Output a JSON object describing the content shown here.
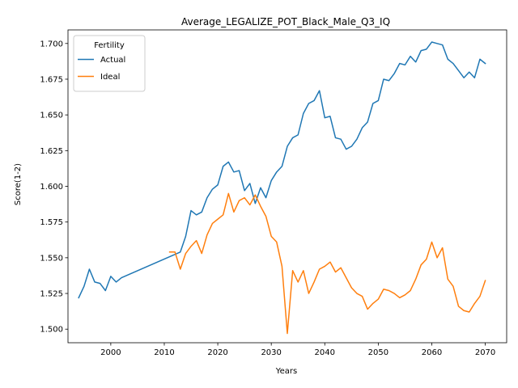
{
  "chart_data": {
    "type": "line",
    "title": "Average_LEGALIZE_POT_Black_Male_Q3_IQ",
    "xlabel": "Years",
    "ylabel": "Score(1-2)",
    "xlim": [
      1992,
      2074
    ],
    "ylim": [
      1.4905,
      1.7095
    ],
    "x_ticks": [
      2000,
      2010,
      2020,
      2030,
      2040,
      2050,
      2060,
      2070
    ],
    "y_ticks": [
      1.5,
      1.525,
      1.55,
      1.575,
      1.6,
      1.625,
      1.65,
      1.675,
      1.7
    ],
    "y_tick_labels": [
      "1.500",
      "1.525",
      "1.550",
      "1.575",
      "1.600",
      "1.625",
      "1.650",
      "1.675",
      "1.700"
    ],
    "legend": {
      "title": "Fertility",
      "position": "top-left"
    },
    "grid": false,
    "series": [
      {
        "name": "Actual",
        "color": "#1f77b4",
        "x": [
          1994,
          1995,
          1996,
          1997,
          1998,
          1999,
          2000,
          2001,
          2002,
          2013,
          2014,
          2015,
          2016,
          2017,
          2018,
          2019,
          2020,
          2021,
          2022,
          2023,
          2024,
          2025,
          2026,
          2027,
          2028,
          2029,
          2030,
          2031,
          2032,
          2033,
          2034,
          2035,
          2036,
          2037,
          2038,
          2039,
          2040,
          2041,
          2042,
          2043,
          2044,
          2045,
          2046,
          2047,
          2048,
          2049,
          2050,
          2051,
          2052,
          2053,
          2054,
          2055,
          2056,
          2057,
          2058,
          2059,
          2060,
          2061,
          2062,
          2063,
          2064,
          2065,
          2066,
          2067,
          2068,
          2069,
          2070
        ],
        "y": [
          1.522,
          1.53,
          1.542,
          1.533,
          1.532,
          1.527,
          1.537,
          1.533,
          1.536,
          1.554,
          1.565,
          1.583,
          1.58,
          1.582,
          1.592,
          1.598,
          1.601,
          1.614,
          1.617,
          1.61,
          1.611,
          1.597,
          1.602,
          1.588,
          1.599,
          1.592,
          1.604,
          1.61,
          1.614,
          1.628,
          1.634,
          1.636,
          1.651,
          1.658,
          1.66,
          1.667,
          1.648,
          1.649,
          1.634,
          1.633,
          1.626,
          1.628,
          1.633,
          1.641,
          1.645,
          1.658,
          1.66,
          1.675,
          1.674,
          1.679,
          1.686,
          1.685,
          1.691,
          1.687,
          1.695,
          1.696,
          1.701,
          1.7,
          1.699,
          1.689,
          1.686,
          1.681,
          1.676,
          1.68,
          1.676,
          1.689,
          1.686
        ]
      },
      {
        "name": "Ideal",
        "color": "#ff7f0e",
        "x": [
          2011,
          2012,
          2013,
          2014,
          2015,
          2016,
          2017,
          2018,
          2019,
          2020,
          2021,
          2022,
          2023,
          2024,
          2025,
          2026,
          2027,
          2028,
          2029,
          2030,
          2031,
          2032,
          2033,
          2034,
          2035,
          2036,
          2037,
          2038,
          2039,
          2040,
          2041,
          2042,
          2043,
          2044,
          2045,
          2046,
          2047,
          2048,
          2049,
          2050,
          2051,
          2052,
          2053,
          2054,
          2055,
          2056,
          2057,
          2058,
          2059,
          2060,
          2061,
          2062,
          2063,
          2064,
          2065,
          2066,
          2067,
          2068,
          2069,
          2070
        ],
        "y": [
          1.554,
          1.554,
          1.542,
          1.553,
          1.558,
          1.562,
          1.553,
          1.566,
          1.574,
          1.577,
          1.58,
          1.595,
          1.582,
          1.59,
          1.592,
          1.587,
          1.594,
          1.586,
          1.579,
          1.565,
          1.561,
          1.544,
          1.497,
          1.541,
          1.533,
          1.541,
          1.525,
          1.533,
          1.542,
          1.544,
          1.547,
          1.54,
          1.543,
          1.536,
          1.529,
          1.525,
          1.523,
          1.514,
          1.518,
          1.521,
          1.528,
          1.527,
          1.525,
          1.522,
          1.524,
          1.527,
          1.535,
          1.545,
          1.549,
          1.561,
          1.55,
          1.557,
          1.535,
          1.53,
          1.516,
          1.513,
          1.512,
          1.518,
          1.523,
          1.534
        ]
      }
    ]
  }
}
